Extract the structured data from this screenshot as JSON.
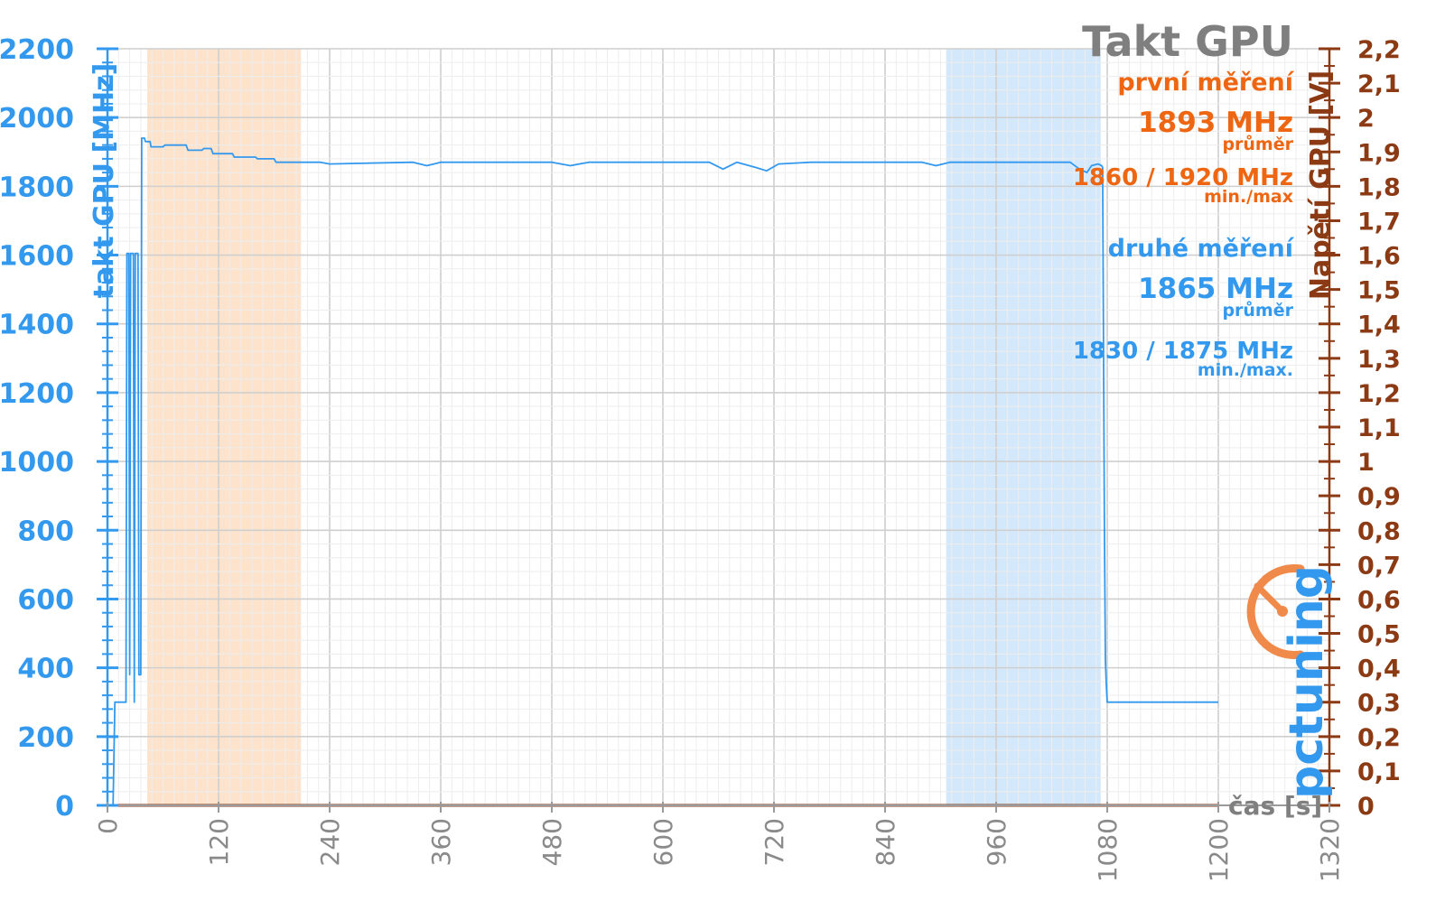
{
  "chart_data": {
    "type": "line",
    "title": "Takt GPU",
    "xlabel": "čas [s]",
    "ylabel": "takt GPU [MHz]",
    "y2label": "Napětí GPU [V]",
    "xlim": [
      0,
      1320
    ],
    "ylim": [
      0,
      2200
    ],
    "y2lim": [
      0,
      2.2
    ],
    "x_ticks": [
      "0",
      "120",
      "240",
      "360",
      "480",
      "600",
      "720",
      "840",
      "960",
      "1080",
      "1200",
      "1320"
    ],
    "y_ticks": [
      "0",
      "200",
      "400",
      "600",
      "800",
      "1000",
      "1200",
      "1400",
      "1600",
      "1800",
      "2000",
      "2200"
    ],
    "y2_ticks": [
      "0",
      "0,1",
      "0,2",
      "0,3",
      "0,4",
      "0,5",
      "0,6",
      "0,7",
      "0,8",
      "0,9",
      "1",
      "1,1",
      "1,2",
      "1,3",
      "1,4",
      "1,5",
      "1,6",
      "1,7",
      "1,8",
      "1,9",
      "2",
      "2,1",
      "2,2"
    ],
    "grid": true,
    "highlight_bands": [
      {
        "name": "první měření",
        "x_range": [
          43,
          209
        ],
        "color": "#fde3cc"
      },
      {
        "name": "druhé měření",
        "x_range": [
          906,
          1073
        ],
        "color": "#d4e8fb"
      }
    ],
    "series": [
      {
        "name": "takt GPU",
        "color": "#3399ee",
        "points": [
          [
            0,
            0
          ],
          [
            6,
            0
          ],
          [
            8,
            300
          ],
          [
            20,
            300
          ],
          [
            21,
            1605
          ],
          [
            23,
            1605
          ],
          [
            24,
            380
          ],
          [
            25,
            1605
          ],
          [
            28,
            1605
          ],
          [
            29,
            300
          ],
          [
            30,
            1605
          ],
          [
            33,
            1605
          ],
          [
            34,
            380
          ],
          [
            36,
            380
          ],
          [
            37,
            1940
          ],
          [
            40,
            1940
          ],
          [
            41,
            1930
          ],
          [
            46,
            1930
          ],
          [
            47,
            1915
          ],
          [
            60,
            1915
          ],
          [
            62,
            1920
          ],
          [
            85,
            1920
          ],
          [
            87,
            1905
          ],
          [
            102,
            1905
          ],
          [
            104,
            1910
          ],
          [
            112,
            1910
          ],
          [
            114,
            1895
          ],
          [
            135,
            1895
          ],
          [
            137,
            1885
          ],
          [
            160,
            1885
          ],
          [
            162,
            1880
          ],
          [
            180,
            1880
          ],
          [
            182,
            1870
          ],
          [
            230,
            1870
          ],
          [
            240,
            1865
          ],
          [
            330,
            1870
          ],
          [
            345,
            1860
          ],
          [
            360,
            1870
          ],
          [
            480,
            1870
          ],
          [
            500,
            1860
          ],
          [
            520,
            1870
          ],
          [
            650,
            1870
          ],
          [
            665,
            1850
          ],
          [
            680,
            1870
          ],
          [
            700,
            1855
          ],
          [
            712,
            1845
          ],
          [
            725,
            1865
          ],
          [
            760,
            1870
          ],
          [
            880,
            1870
          ],
          [
            895,
            1860
          ],
          [
            910,
            1870
          ],
          [
            1040,
            1870
          ],
          [
            1050,
            1850
          ],
          [
            1058,
            1840
          ],
          [
            1063,
            1860
          ],
          [
            1070,
            1865
          ],
          [
            1074,
            1860
          ],
          [
            1075,
            1855
          ],
          [
            1077,
            800
          ],
          [
            1078,
            420
          ],
          [
            1079,
            350
          ],
          [
            1080,
            300
          ],
          [
            1200,
            300
          ]
        ]
      },
      {
        "name": "Napětí GPU",
        "color": "#8b3a14",
        "points": [
          [
            0,
            0
          ],
          [
            1200,
            0
          ]
        ]
      }
    ],
    "annotations": {
      "first_label": "první měření",
      "first_avg": "1893 MHz",
      "first_avg_caption": "průměr",
      "first_minmax": "1860 / 1920 MHz",
      "first_minmax_caption": "min./max",
      "second_label": "druhé měření",
      "second_avg": "1865 MHz",
      "second_avg_caption": "průměr",
      "second_minmax": "1830 / 1875 MHz",
      "second_minmax_caption": "min./max."
    },
    "colors": {
      "first": "#ee6611",
      "second": "#3399ee",
      "voltage_axis": "#8b3a14",
      "title": "#7f7f7f"
    }
  },
  "logo": {
    "text": "pctuning"
  }
}
